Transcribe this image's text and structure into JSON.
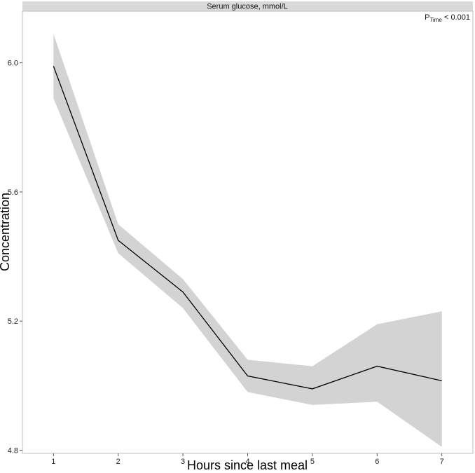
{
  "chart_data": {
    "type": "line",
    "facet_title": "Serum glucose, mmol/L",
    "annotation": {
      "main": "P",
      "sub": "Time",
      "rest": " < 0.001"
    },
    "xlabel": "Hours since last meal",
    "ylabel": "Concentration",
    "x": [
      1,
      2,
      3,
      4,
      5,
      6,
      7
    ],
    "xticks": [
      "1",
      "2",
      "3",
      "4",
      "5",
      "6",
      "7"
    ],
    "yticks": [
      "4.8",
      "5.2",
      "5.6",
      "6.0"
    ],
    "ylim": [
      4.79,
      6.16
    ],
    "series": [
      {
        "values": [
          5.99,
          5.45,
          5.29,
          5.03,
          4.99,
          5.06,
          5.015
        ],
        "lower": [
          5.89,
          5.41,
          5.24,
          4.98,
          4.94,
          4.95,
          4.81
        ],
        "upper": [
          6.09,
          5.5,
          5.33,
          5.08,
          5.06,
          5.19,
          5.23
        ]
      }
    ],
    "grid": false,
    "colors": {
      "line": "#000000",
      "band": "#d3d3d3",
      "strip": "#d9d9d9",
      "frame": "#bfbfbf"
    }
  }
}
